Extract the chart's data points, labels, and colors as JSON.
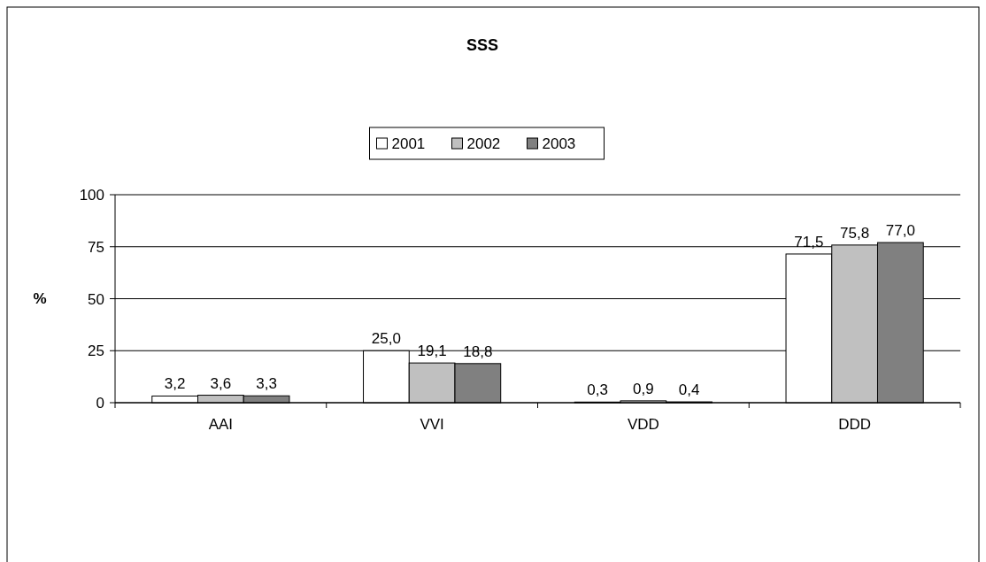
{
  "chart_data": {
    "type": "bar",
    "title": "SSS",
    "ylabel": "%",
    "categories": [
      "AAI",
      "VVI",
      "VDD",
      "DDD"
    ],
    "series": [
      {
        "name": "2001",
        "color": "#ffffff",
        "values": [
          3.2,
          25.0,
          0.3,
          71.5
        ],
        "value_labels": [
          "3,2",
          "25,0",
          "0,3",
          "71,5"
        ]
      },
      {
        "name": "2002",
        "color": "#c0c0c0",
        "values": [
          3.6,
          19.1,
          0.9,
          75.8
        ],
        "value_labels": [
          "3,6",
          "19,1",
          "0,9",
          "75,8"
        ]
      },
      {
        "name": "2003",
        "color": "#808080",
        "values": [
          3.3,
          18.8,
          0.4,
          77.0
        ],
        "value_labels": [
          "3,3",
          "18,8",
          "0,4",
          "77,0"
        ]
      }
    ],
    "ylim": [
      0,
      100
    ],
    "yticks": [
      0,
      25,
      50,
      75,
      100
    ],
    "grid": "y",
    "legend": "top"
  }
}
